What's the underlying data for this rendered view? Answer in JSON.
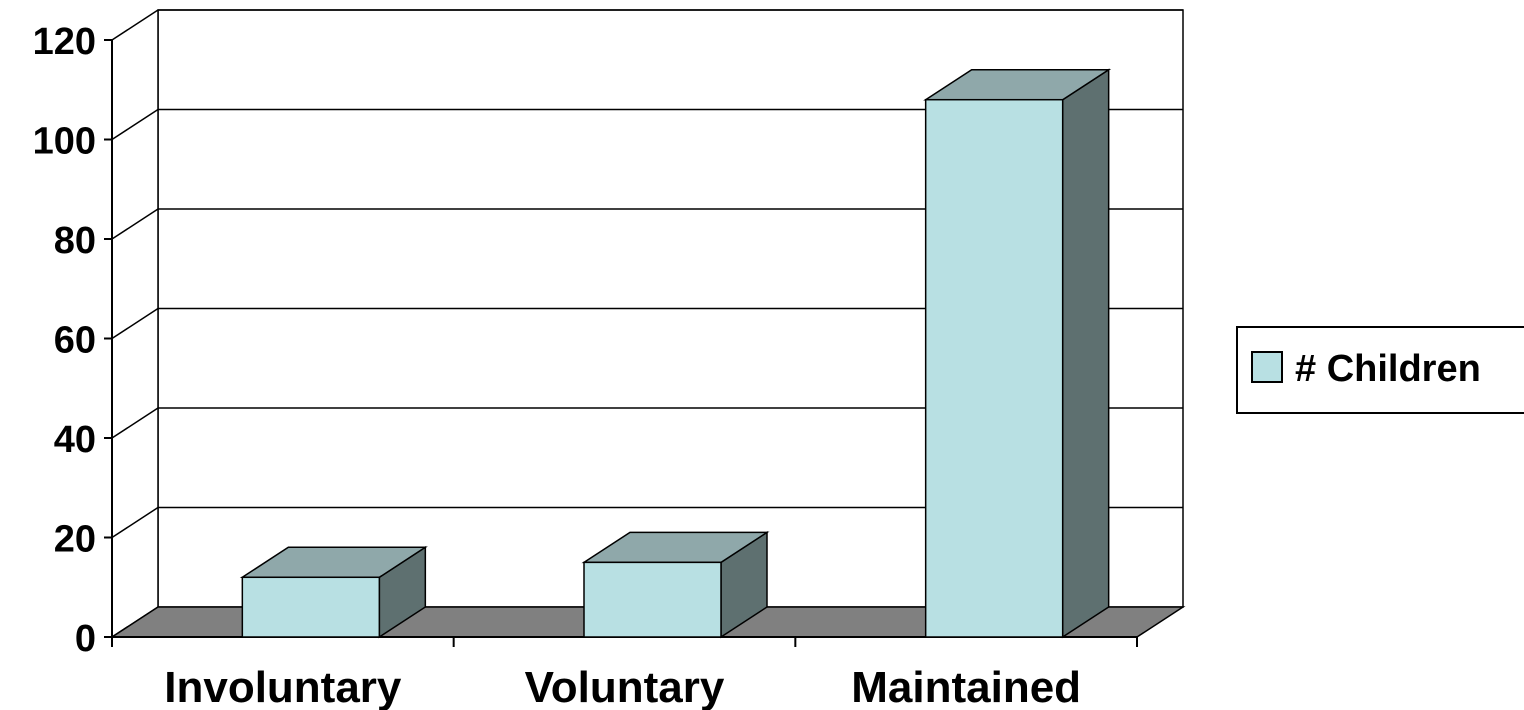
{
  "chart_data": {
    "type": "bar",
    "style": "3d-column",
    "categories": [
      "Involuntary",
      "Voluntary",
      "Maintained"
    ],
    "series": [
      {
        "name": "# Children",
        "values": [
          12,
          15,
          108
        ]
      }
    ],
    "y_ticks": [
      "0",
      "20",
      "40",
      "60",
      "80",
      "100",
      "120"
    ],
    "ylim": [
      0,
      120
    ],
    "grid": true,
    "legend_position": "right",
    "title": "",
    "xlabel": "",
    "ylabel": ""
  },
  "colors": {
    "bar_front": "#b8e0e3",
    "bar_top": "#8fa8aa",
    "bar_side": "#5e7070",
    "floor": "#808080",
    "walls": "#ffffff",
    "lines": "#000000"
  }
}
